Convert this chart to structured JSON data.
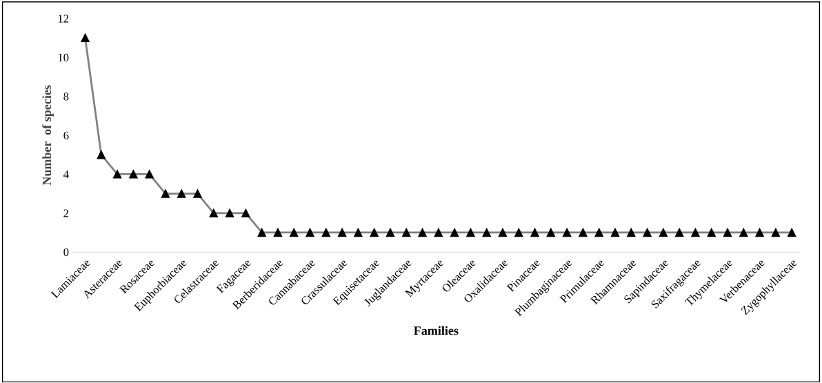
{
  "chart_data": {
    "type": "line",
    "xlabel": "Families",
    "ylabel": "Number  of species",
    "categories": [
      "Lamiaceae",
      null,
      "Asteraceae",
      null,
      "Rosaceae",
      null,
      "Euphorbiaceae",
      null,
      "Celastraceae",
      null,
      "Fagaceae",
      null,
      "Berberidaceae",
      null,
      "Cannabaceae",
      null,
      "Crassulaceae",
      null,
      "Equisetaceae",
      null,
      "Juglandaceae",
      null,
      "Myrtaceae",
      null,
      "Oleaceae",
      null,
      "Oxalidaceae",
      null,
      "Pinaceae",
      null,
      "Plumbaginaceae",
      null,
      "Primulaceae",
      null,
      "Rhamnaceae",
      null,
      "Sapindaceae",
      null,
      "Saxifragaceae",
      null,
      "Thymelaceae",
      null,
      "Verbenaceae",
      null,
      "Zygophyllaceae"
    ],
    "series": [
      {
        "color": "#808080",
        "values": [
          11,
          5,
          4,
          4,
          4,
          3,
          3,
          3,
          2,
          2,
          2,
          1,
          1,
          1,
          1,
          1,
          1,
          1,
          1,
          1,
          1,
          1,
          1,
          1,
          1,
          1,
          1,
          1,
          1,
          1,
          1,
          1,
          1,
          1,
          1,
          1,
          1,
          1,
          1,
          1,
          1,
          1,
          1,
          1,
          1
        ]
      }
    ],
    "ylim": [
      0,
      12
    ],
    "yticks": [
      0,
      2,
      4,
      6,
      8,
      10,
      12
    ],
    "marker": "triangle",
    "line_style": "solid",
    "grid": false,
    "legend": false
  }
}
